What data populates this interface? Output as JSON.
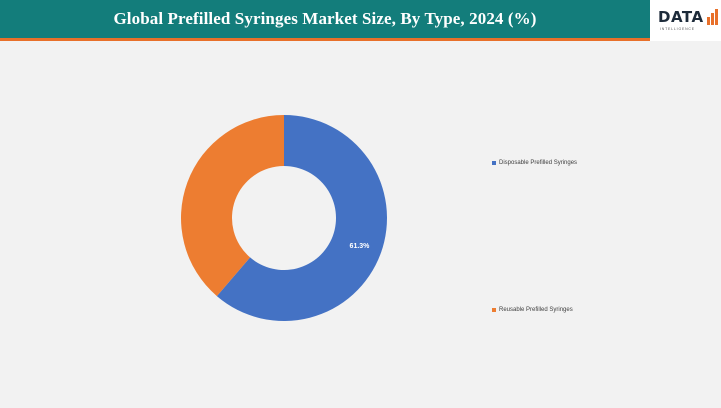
{
  "header": {
    "title": "Global Prefilled Syringes Market Size, By Type, 2024 (%)"
  },
  "logo": {
    "text": "DATA",
    "subtext": "INTELLIGENCE"
  },
  "colors": {
    "header_bg": "#137d7b",
    "accent": "#e8702a",
    "blue": "#4472c4",
    "orange": "#ed7d31"
  },
  "chart_data": {
    "type": "pie",
    "variant": "donut",
    "title": "Global Prefilled Syringes Market Size, By Type, 2024 (%)",
    "categories": [
      "Disposable Prefilled Syringes",
      "Reusable Prefilled Syringes"
    ],
    "values": [
      61.3,
      38.7
    ],
    "data_labels": [
      "61.3%",
      ""
    ],
    "colors": [
      "#4472c4",
      "#ed7d31"
    ],
    "legend": {
      "placement": "right",
      "items": [
        "Disposable Prefilled Syringes",
        "Reusable Prefilled Syringes"
      ]
    }
  }
}
